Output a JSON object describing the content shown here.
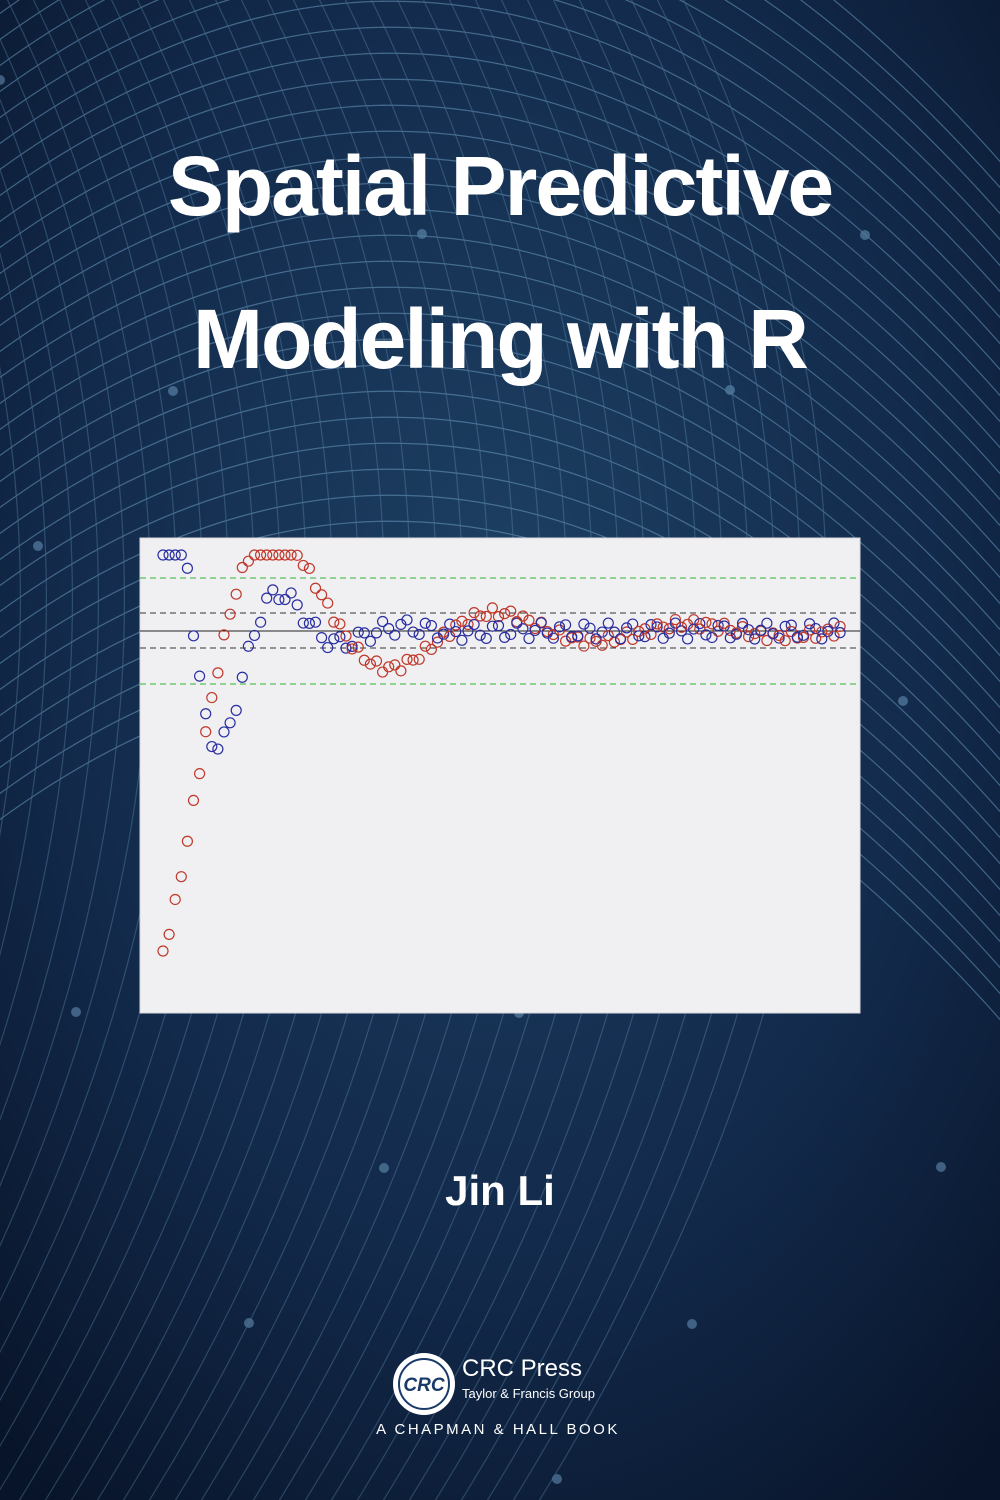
{
  "cover": {
    "title_lines": [
      "Spatial Predictive",
      "Modeling with R"
    ],
    "author": "Jin Li",
    "publisher": {
      "logo": "CRC",
      "name": "CRC Press",
      "group": "Taylor & Francis Group",
      "imprint": "A CHAPMAN & HALL BOOK"
    }
  }
}
